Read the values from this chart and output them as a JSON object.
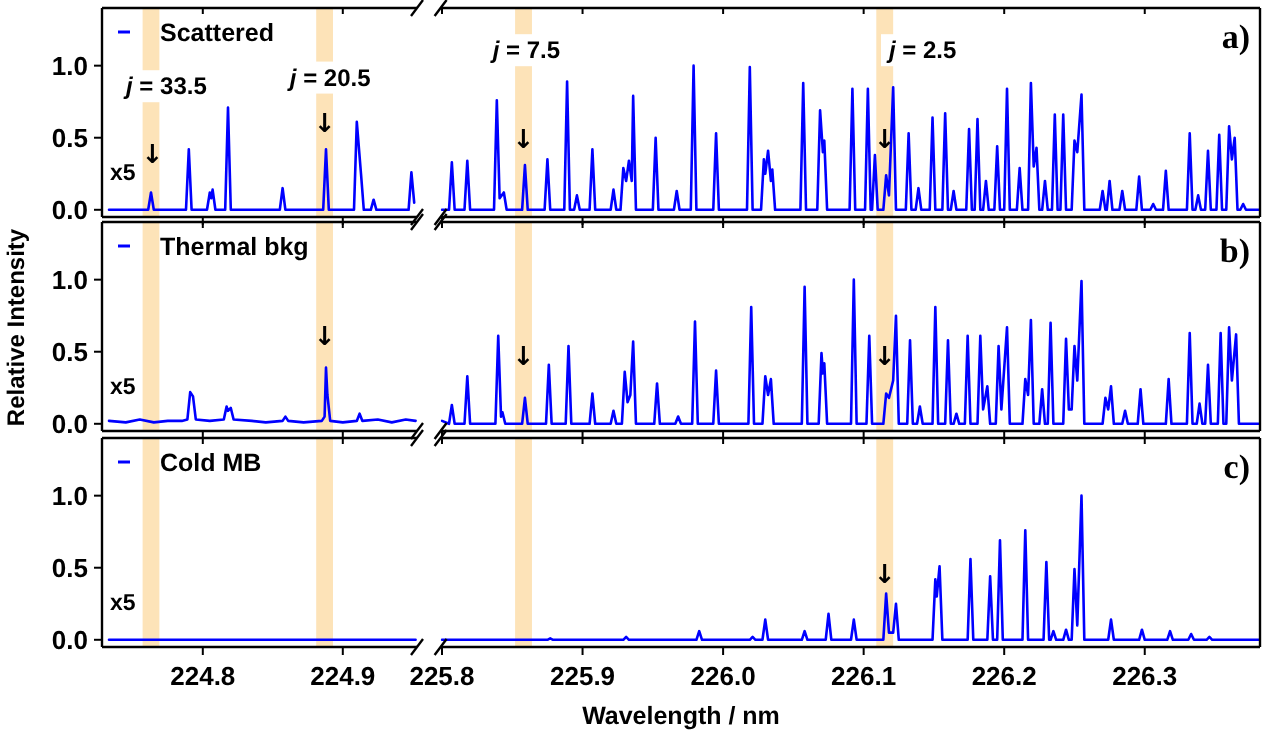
{
  "chart_data": [
    {
      "type": "line",
      "legend": "top left",
      "tick_labels": "y",
      "xlim": [
        224.728,
        224.953
      ],
      "xticks": [
        224.8,
        224.9
      ],
      "ylim": [
        -0.05,
        1.4
      ],
      "yticks": [
        {
          "value": 0,
          "label": "0.0"
        },
        {
          "value": 0.5,
          "label": "0.5"
        },
        {
          "value": 1,
          "label": "1.0"
        }
      ],
      "bands": [
        {
          "axis": "x",
          "from": 224.757,
          "to": 224.769,
          "color": "#fde3b8"
        },
        {
          "axis": "x",
          "from": 224.881,
          "to": 224.893,
          "color": "#fde3b8"
        }
      ],
      "annotations": [
        "x5",
        {
          "text": "j = 33.5",
          "x": 224.774,
          "y": 0.86
        },
        {
          "text": "↓",
          "x": 224.764,
          "y": 0.39
        },
        {
          "text": "j = 20.5",
          "x": 224.891,
          "y": 0.92
        },
        {
          "text": "↓",
          "x": 224.887,
          "y": 0.6
        }
      ],
      "series": [
        {
          "name": "Scattered",
          "color": "#0000ff",
          "x": [
            224.733,
            224.761,
            224.763,
            224.765,
            224.788,
            224.79,
            224.792,
            224.803,
            224.805,
            224.806,
            224.807,
            224.809,
            224.816,
            224.818,
            224.82,
            224.855,
            224.857,
            224.859,
            224.886,
            224.888,
            224.89,
            224.908,
            224.91,
            224.913,
            224.915,
            224.92,
            224.922,
            224.924,
            224.947,
            224.949,
            224.951
          ],
          "values": [
            0,
            0,
            0.12,
            0,
            0,
            0.42,
            0,
            0,
            0.12,
            0.08,
            0.14,
            0,
            0,
            0.71,
            0,
            0,
            0.15,
            0,
            0,
            0.42,
            0,
            0,
            0.61,
            0.25,
            0,
            0,
            0.07,
            0,
            0,
            0.26,
            0.05
          ]
        }
      ]
    },
    {
      "type": "line",
      "title": "a)",
      "tick_labels": false,
      "xlim": [
        225.799,
        226.382
      ],
      "xticks": [
        225.8,
        225.9,
        226,
        226.1,
        226.2,
        226.3
      ],
      "ylim": [
        -0.05,
        1.4
      ],
      "bands": [
        {
          "axis": "x",
          "from": 225.852,
          "to": 225.864,
          "color": "#fde3b8"
        },
        {
          "axis": "x",
          "from": 226.109,
          "to": 226.121,
          "color": "#fde3b8"
        }
      ],
      "annotations": [
        {
          "text": "j = 7.5",
          "x": 225.86,
          "y": 1.11
        },
        {
          "text": "↓",
          "x": 225.858,
          "y": 0.49
        },
        {
          "text": "j = 2.5",
          "x": 226.142,
          "y": 1.11
        },
        {
          "text": "↓",
          "x": 226.115,
          "y": 0.49
        }
      ],
      "series": [
        {
          "color": "#0000ff",
          "x": [
            225.8,
            225.805,
            225.807,
            225.809,
            225.816,
            225.818,
            225.82,
            225.837,
            225.839,
            225.841,
            225.844,
            225.846,
            225.857,
            225.859,
            225.861,
            225.873,
            225.875,
            225.877,
            225.887,
            225.889,
            225.891,
            225.894,
            225.896,
            225.898,
            225.905,
            225.907,
            225.909,
            225.92,
            225.922,
            225.924,
            225.927,
            225.929,
            225.931,
            225.933,
            225.935,
            225.936,
            225.938,
            225.95,
            225.952,
            225.954,
            225.965,
            225.967,
            225.969,
            225.977,
            225.979,
            225.981,
            225.993,
            225.995,
            225.997,
            226.017,
            226.019,
            226.021,
            226.027,
            226.029,
            226.03,
            226.032,
            226.034,
            226.035,
            226.037,
            226.055,
            226.057,
            226.059,
            226.067,
            226.069,
            226.071,
            226.072,
            226.074,
            226.09,
            226.092,
            226.094,
            226.101,
            226.103,
            226.105,
            226.106,
            226.108,
            226.11,
            226.114,
            226.116,
            226.118,
            226.121,
            226.123,
            226.13,
            226.132,
            226.134,
            226.137,
            226.139,
            226.141,
            226.147,
            226.149,
            226.151,
            226.156,
            226.158,
            226.16,
            226.162,
            226.164,
            226.166,
            226.173,
            226.175,
            226.177,
            226.179,
            226.181,
            226.183,
            226.185,
            226.187,
            226.189,
            226.193,
            226.195,
            226.197,
            226.2,
            226.202,
            226.204,
            226.209,
            226.211,
            226.213,
            226.217,
            226.219,
            226.221,
            226.223,
            226.225,
            226.227,
            226.229,
            226.231,
            226.234,
            226.236,
            226.238,
            226.24,
            226.242,
            226.244,
            226.248,
            226.25,
            226.252,
            226.255,
            226.257,
            226.268,
            226.27,
            226.272,
            226.273,
            226.275,
            226.277,
            226.282,
            226.284,
            226.286,
            226.294,
            226.296,
            226.298,
            226.304,
            226.306,
            226.308,
            226.313,
            226.315,
            226.317,
            226.33,
            226.332,
            226.334,
            226.336,
            226.338,
            226.34,
            226.343,
            226.345,
            226.347,
            226.351,
            226.353,
            226.355,
            226.358,
            226.36,
            226.362,
            226.364,
            226.366,
            226.368,
            226.37,
            226.372,
            226.381
          ],
          "values": [
            0,
            0,
            0.33,
            0,
            0,
            0.34,
            0,
            0,
            0.76,
            0.08,
            0.12,
            0,
            0,
            0.31,
            0,
            0,
            0.35,
            0,
            0,
            0.89,
            0,
            0,
            0.1,
            0,
            0,
            0.42,
            0,
            0,
            0.14,
            0,
            0,
            0.29,
            0.2,
            0.34,
            0.2,
            0.79,
            0,
            0,
            0.5,
            0,
            0,
            0.13,
            0,
            0,
            1.0,
            0,
            0,
            0.53,
            0,
            0,
            0.99,
            0,
            0,
            0.35,
            0.25,
            0.41,
            0.2,
            0.28,
            0,
            0,
            0.88,
            0,
            0,
            0.69,
            0.4,
            0.48,
            0,
            0,
            0.84,
            0,
            0,
            0.84,
            0,
            0,
            0.38,
            0,
            0,
            0.24,
            0.1,
            0.85,
            0,
            0,
            0.53,
            0,
            0,
            0.15,
            0,
            0,
            0.64,
            0,
            0,
            0.67,
            0,
            0,
            0.13,
            0,
            0,
            0.56,
            0,
            0,
            0.63,
            0,
            0,
            0.2,
            0,
            0,
            0.44,
            0,
            0,
            0.84,
            0,
            0,
            0.29,
            0,
            0,
            0.88,
            0.3,
            0.43,
            0,
            0,
            0.2,
            0,
            0,
            0.66,
            0,
            0,
            0.66,
            0,
            0,
            0.48,
            0.4,
            0.8,
            0,
            0,
            0.13,
            0,
            0,
            0.2,
            0,
            0,
            0.13,
            0,
            0,
            0.23,
            0,
            0,
            0.04,
            0,
            0,
            0.27,
            0,
            0,
            0.53,
            0,
            0,
            0.1,
            0,
            0,
            0.41,
            0,
            0,
            0.52,
            0,
            0,
            0.58,
            0.35,
            0.5,
            0,
            0,
            0.04,
            0,
            0
          ]
        }
      ]
    },
    {
      "type": "line",
      "legend": "top left",
      "tick_labels": "y",
      "ylabel": "Relative Intensity",
      "xlim": [
        224.728,
        224.953
      ],
      "xticks": [
        224.8,
        224.9
      ],
      "ylim": [
        -0.05,
        1.4
      ],
      "yticks": [
        {
          "value": 0,
          "label": "0.0"
        },
        {
          "value": 0.5,
          "label": "0.5"
        },
        {
          "value": 1,
          "label": "1.0"
        }
      ],
      "bands": [
        {
          "axis": "x",
          "from": 224.757,
          "to": 224.769,
          "color": "#fde3b8"
        },
        {
          "axis": "x",
          "from": 224.881,
          "to": 224.893,
          "color": "#fde3b8"
        }
      ],
      "annotations": [
        "x5",
        {
          "text": "↓",
          "x": 224.887,
          "y": 0.61
        }
      ],
      "series": [
        {
          "name": "Thermal bkg",
          "color": "#0000ff",
          "x": [
            224.733,
            224.745,
            224.755,
            224.765,
            224.775,
            224.785,
            224.789,
            224.791,
            224.793,
            224.795,
            224.805,
            224.815,
            224.817,
            224.818,
            224.82,
            224.822,
            224.835,
            224.845,
            224.857,
            224.859,
            224.861,
            224.872,
            224.885,
            224.887,
            224.888,
            224.889,
            224.891,
            224.9,
            224.91,
            224.912,
            224.914,
            224.925,
            224.935,
            224.945,
            224.952
          ],
          "values": [
            0.02,
            0.01,
            0.03,
            0.01,
            0.02,
            0.02,
            0.03,
            0.22,
            0.19,
            0.03,
            0.02,
            0.03,
            0.12,
            0.09,
            0.11,
            0.03,
            0.02,
            0.01,
            0.02,
            0.05,
            0.02,
            0.01,
            0.02,
            0.05,
            0.39,
            0.2,
            0.02,
            0.01,
            0.02,
            0.07,
            0.02,
            0.03,
            0.01,
            0.03,
            0.02
          ]
        }
      ]
    },
    {
      "type": "line",
      "title": "b)",
      "tick_labels": false,
      "xlim": [
        225.799,
        226.382
      ],
      "xticks": [
        225.8,
        225.9,
        226,
        226.1,
        226.2,
        226.3
      ],
      "ylim": [
        -0.05,
        1.4
      ],
      "bands": [
        {
          "axis": "x",
          "from": 225.852,
          "to": 225.864,
          "color": "#fde3b8"
        },
        {
          "axis": "x",
          "from": 226.109,
          "to": 226.121,
          "color": "#fde3b8"
        }
      ],
      "annotations": [
        {
          "text": "↓",
          "x": 225.858,
          "y": 0.47
        },
        {
          "text": "↓",
          "x": 226.115,
          "y": 0.47
        }
      ],
      "series": [
        {
          "color": "#0000ff",
          "x": [
            225.8,
            225.805,
            225.807,
            225.809,
            225.816,
            225.818,
            225.82,
            225.838,
            225.84,
            225.842,
            225.843,
            225.845,
            225.857,
            225.859,
            225.861,
            225.874,
            225.876,
            225.878,
            225.888,
            225.89,
            225.892,
            225.905,
            225.907,
            225.909,
            225.92,
            225.922,
            225.924,
            225.928,
            225.93,
            225.932,
            225.934,
            225.936,
            225.938,
            225.951,
            225.953,
            225.955,
            225.966,
            225.968,
            225.97,
            225.978,
            225.98,
            225.982,
            225.993,
            225.995,
            225.997,
            226.018,
            226.02,
            226.022,
            226.028,
            226.03,
            226.032,
            226.034,
            226.036,
            226.056,
            226.058,
            226.06,
            226.068,
            226.07,
            226.071,
            226.072,
            226.074,
            226.091,
            226.093,
            226.095,
            226.102,
            226.104,
            226.106,
            226.114,
            226.116,
            226.118,
            226.121,
            226.123,
            226.125,
            226.131,
            226.133,
            226.135,
            226.138,
            226.14,
            226.142,
            226.149,
            226.151,
            226.153,
            226.158,
            226.16,
            226.162,
            226.164,
            226.166,
            226.168,
            226.172,
            226.174,
            226.176,
            226.181,
            226.183,
            226.185,
            226.188,
            226.19,
            226.194,
            226.196,
            226.198,
            226.202,
            226.204,
            226.213,
            226.215,
            226.217,
            226.219,
            226.221,
            226.225,
            226.227,
            226.229,
            226.231,
            226.233,
            226.235,
            226.242,
            226.244,
            226.246,
            226.248,
            226.25,
            226.252,
            226.255,
            226.257,
            226.27,
            226.272,
            226.274,
            226.276,
            226.278,
            226.284,
            226.286,
            226.288,
            226.295,
            226.297,
            226.299,
            226.315,
            226.317,
            226.319,
            226.33,
            226.332,
            226.334,
            226.337,
            226.339,
            226.341,
            226.343,
            226.345,
            226.347,
            226.352,
            226.354,
            226.356,
            226.358,
            226.36,
            226.362,
            226.365,
            226.367,
            226.381
          ],
          "values": [
            0.02,
            0,
            0.13,
            0,
            0,
            0.33,
            0,
            0,
            0.61,
            0.05,
            0.08,
            0,
            0,
            0.18,
            0,
            0,
            0.41,
            0,
            0,
            0.54,
            0,
            0,
            0.21,
            0,
            0,
            0.09,
            0,
            0,
            0.36,
            0.15,
            0.2,
            0.57,
            0,
            0,
            0.28,
            0,
            0,
            0.05,
            0,
            0,
            0.71,
            0,
            0,
            0.37,
            0,
            0,
            0.81,
            0,
            0,
            0.33,
            0.2,
            0.31,
            0,
            0,
            0.95,
            0,
            0,
            0.49,
            0.35,
            0.42,
            0,
            0,
            1.0,
            0,
            0,
            0.61,
            0,
            0,
            0.21,
            0.18,
            0.3,
            0.75,
            0,
            0,
            0.58,
            0,
            0,
            0.12,
            0,
            0,
            0.81,
            0,
            0,
            0.58,
            0,
            0,
            0.07,
            0,
            0,
            0.61,
            0,
            0,
            0.61,
            0.1,
            0.26,
            0,
            0,
            0.54,
            0.1,
            0.67,
            0,
            0,
            0.31,
            0.2,
            0.72,
            0,
            0,
            0.24,
            0,
            0,
            0.7,
            0,
            0,
            0.59,
            0.1,
            0.1,
            0.54,
            0.3,
            0.99,
            0,
            0,
            0.18,
            0.1,
            0.26,
            0,
            0,
            0.09,
            0,
            0,
            0.24,
            0,
            0,
            0.31,
            0,
            0,
            0.63,
            0,
            0,
            0.14,
            0,
            0,
            0.41,
            0,
            0,
            0.63,
            0,
            0,
            0.67,
            0.3,
            0.62,
            0,
            0
          ]
        }
      ]
    },
    {
      "type": "line",
      "legend": "top left",
      "xlim": [
        224.728,
        224.953
      ],
      "xticks": [
        224.8,
        224.9
      ],
      "ylim": [
        -0.05,
        1.4
      ],
      "yticks": [
        {
          "value": 0,
          "label": "0.0"
        },
        {
          "value": 0.5,
          "label": "0.5"
        },
        {
          "value": 1,
          "label": "1.0"
        }
      ],
      "bands": [
        {
          "axis": "x",
          "from": 224.757,
          "to": 224.769,
          "color": "#fde3b8"
        },
        {
          "axis": "x",
          "from": 224.881,
          "to": 224.893,
          "color": "#fde3b8"
        }
      ],
      "annotations": [
        "x5"
      ],
      "series": [
        {
          "name": "Cold MB",
          "color": "#0000ff",
          "x": [
            224.733,
            224.952
          ],
          "values": [
            0,
            0
          ]
        }
      ]
    },
    {
      "type": "line",
      "title": "c)",
      "tick_labels": "x",
      "xlabel": "Wavelength / nm",
      "xlim": [
        225.799,
        226.382
      ],
      "xticks": [
        225.8,
        225.9,
        {
          "value": 226,
          "label": "226.0"
        },
        226.1,
        226.2,
        226.3
      ],
      "ylim": [
        -0.05,
        1.4
      ],
      "bands": [
        {
          "axis": "x",
          "from": 225.852,
          "to": 225.864,
          "color": "#fde3b8"
        },
        {
          "axis": "x",
          "from": 226.109,
          "to": 226.121,
          "color": "#fde3b8"
        }
      ],
      "annotations": [
        {
          "text": "↓",
          "x": 226.115,
          "y": 0.46
        }
      ],
      "series": [
        {
          "color": "#0000ff",
          "x": [
            225.8,
            225.875,
            225.877,
            225.879,
            225.929,
            225.931,
            225.933,
            225.981,
            225.983,
            225.985,
            226.019,
            226.021,
            226.023,
            226.028,
            226.03,
            226.032,
            226.056,
            226.058,
            226.06,
            226.073,
            226.075,
            226.077,
            226.091,
            226.093,
            226.095,
            226.114,
            226.116,
            226.118,
            226.121,
            226.123,
            226.125,
            226.149,
            226.151,
            226.152,
            226.154,
            226.156,
            226.174,
            226.176,
            226.178,
            226.188,
            226.19,
            226.192,
            226.195,
            226.197,
            226.199,
            226.213,
            226.215,
            226.217,
            226.228,
            226.23,
            226.232,
            226.233,
            226.235,
            226.237,
            226.242,
            226.244,
            226.246,
            226.248,
            226.25,
            226.252,
            226.255,
            226.257,
            226.274,
            226.276,
            226.278,
            226.296,
            226.298,
            226.3,
            226.316,
            226.318,
            226.32,
            226.331,
            226.333,
            226.335,
            226.344,
            226.346,
            226.348,
            226.381
          ],
          "values": [
            0,
            0,
            0.01,
            0,
            0,
            0.02,
            0,
            0,
            0.06,
            0,
            0,
            0.02,
            0,
            0,
            0.14,
            0,
            0,
            0.06,
            0,
            0,
            0.18,
            0,
            0,
            0.14,
            0,
            0,
            0.32,
            0.05,
            0.05,
            0.25,
            0,
            0,
            0.42,
            0.3,
            0.51,
            0,
            0,
            0.56,
            0,
            0,
            0.44,
            0,
            0,
            0.69,
            0,
            0,
            0.76,
            0,
            0,
            0.54,
            0,
            0,
            0.06,
            0,
            0,
            0.07,
            0,
            0,
            0.49,
            0.1,
            1.0,
            0,
            0,
            0.14,
            0,
            0,
            0.07,
            0,
            0,
            0.06,
            0,
            0,
            0.04,
            0,
            0,
            0.02,
            0,
            0
          ]
        }
      ]
    }
  ]
}
